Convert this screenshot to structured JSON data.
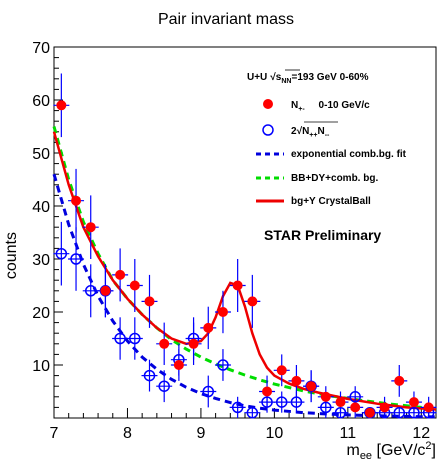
{
  "chart_data": {
    "type": "scatter",
    "title": "Pair invariant mass",
    "xlabel": "m",
    "xlabel_sub": "ee",
    "xlabel_unit_open": " [GeV/c",
    "xlabel_unit_sup": "2",
    "xlabel_unit_close": "]",
    "ylabel": "counts",
    "xlim": [
      7,
      12.2
    ],
    "ylim": [
      0,
      70
    ],
    "x_ticks": [
      7,
      8,
      9,
      10,
      11,
      12
    ],
    "y_ticks": [
      10,
      20,
      30,
      40,
      50,
      60,
      70
    ],
    "grid": false,
    "legend_position": "top-right",
    "legend": {
      "header": {
        "system": "U+U",
        "energy": "=193 GeV 0-60%"
      },
      "entries": [
        {
          "main": "N",
          "sub": "+-",
          "suffix": "     0-10 GeV/c"
        },
        {
          "main": "2",
          "root": "N",
          "sub1": "++",
          "root2": "N",
          "sub2": "--"
        },
        {
          "label": "exponential comb.bg. fit"
        },
        {
          "label": "BB+DY+comb. bg."
        },
        {
          "label": "bg+Υ CrystalBall"
        }
      ]
    },
    "annotation": "STAR Preliminary",
    "colors": {
      "unlike": "#ff0000",
      "like": "#0000ff",
      "exp_fit": "#0000dd",
      "bb_dy": "#00dd00",
      "crystal": "#ee0000",
      "error": "#0000ff"
    },
    "series": [
      {
        "name": "N+- 0-10 GeV/c",
        "marker": "filled-circle",
        "x": [
          7.1,
          7.3,
          7.5,
          7.7,
          7.9,
          8.1,
          8.3,
          8.5,
          8.7,
          8.9,
          9.1,
          9.3,
          9.5,
          9.7,
          9.9,
          10.1,
          10.3,
          10.5,
          10.7,
          10.9,
          11.1,
          11.3,
          11.5,
          11.7,
          11.9,
          12.1
        ],
        "y": [
          59,
          41,
          36,
          24,
          27,
          25,
          22,
          14,
          10,
          14,
          17,
          20,
          25,
          22,
          5,
          9,
          7,
          6,
          4,
          3,
          2,
          1,
          2,
          7,
          3,
          2
        ],
        "err": [
          6,
          6,
          6,
          5,
          5,
          5,
          5,
          4,
          3,
          4,
          4,
          4,
          5,
          5,
          3,
          3,
          3,
          3,
          2,
          2,
          2,
          1,
          2,
          3,
          2,
          2
        ]
      },
      {
        "name": "2sqrt(N++N--)",
        "marker": "open-circle",
        "x": [
          7.1,
          7.3,
          7.5,
          7.7,
          7.9,
          8.1,
          8.3,
          8.5,
          8.7,
          8.9,
          9.1,
          9.3,
          9.5,
          9.7,
          9.9,
          10.1,
          10.3,
          10.5,
          10.7,
          10.9,
          11.1,
          11.3,
          11.5,
          11.7,
          11.9,
          12.1
        ],
        "y": [
          31,
          30,
          24,
          24,
          15,
          15,
          8,
          6,
          11,
          15,
          5,
          10,
          2,
          1,
          3,
          3,
          3,
          6,
          2,
          1,
          4,
          1,
          1,
          1,
          1,
          1
        ],
        "err": [
          6,
          6,
          5,
          5,
          4,
          4,
          3,
          3,
          3,
          4,
          3,
          3,
          2,
          1,
          2,
          2,
          2,
          3,
          2,
          1,
          2,
          1,
          1,
          1,
          1,
          1
        ]
      },
      {
        "name": "exponential comb.bg. fit",
        "style": "dashed-line",
        "x": [
          7.0,
          7.2,
          7.4,
          7.6,
          7.8,
          8.0,
          8.2,
          8.4,
          8.6,
          8.8,
          9.0,
          9.2,
          9.4,
          9.6,
          9.8,
          10.0,
          10.4,
          10.8,
          11.2,
          11.6,
          12.0,
          12.2
        ],
        "y": [
          46,
          36.5,
          29,
          23,
          18.3,
          14.5,
          11.5,
          9.2,
          7.3,
          5.8,
          4.6,
          3.7,
          2.9,
          2.3,
          1.85,
          1.5,
          1.0,
          0.7,
          0.5,
          0.35,
          0.25,
          0.2
        ]
      },
      {
        "name": "BB+DY+comb. bg.",
        "style": "dashed-line",
        "x": [
          7.0,
          7.2,
          7.4,
          7.6,
          7.8,
          8.0,
          8.2,
          8.4,
          8.6,
          8.8,
          9.0,
          9.2,
          9.4,
          9.6,
          9.8,
          10.0,
          10.4,
          10.8,
          11.2,
          11.6,
          12.0,
          12.2
        ],
        "y": [
          55,
          45,
          37,
          31,
          26,
          22.5,
          19.5,
          17,
          14.8,
          13,
          11.5,
          10.2,
          9.1,
          8.1,
          7.2,
          6.4,
          5.1,
          4.1,
          3.3,
          2.6,
          2.0,
          1.8
        ]
      },
      {
        "name": "bg+Υ CrystalBall",
        "style": "solid-line",
        "x": [
          7.0,
          7.2,
          7.4,
          7.6,
          7.8,
          8.0,
          8.2,
          8.4,
          8.6,
          8.8,
          9.0,
          9.1,
          9.2,
          9.3,
          9.4,
          9.5,
          9.6,
          9.7,
          9.8,
          9.9,
          10.0,
          10.2,
          10.4,
          10.6,
          10.8,
          11.0,
          11.4,
          11.8,
          12.2
        ],
        "y": [
          54,
          44,
          36,
          30.5,
          26,
          22.5,
          19.5,
          17,
          15,
          14,
          14.5,
          16,
          19,
          23,
          25.5,
          25,
          21,
          16,
          12,
          9.5,
          8,
          6.5,
          5.5,
          4.8,
          4.2,
          3.6,
          2.7,
          2.0,
          1.6
        ]
      }
    ]
  }
}
